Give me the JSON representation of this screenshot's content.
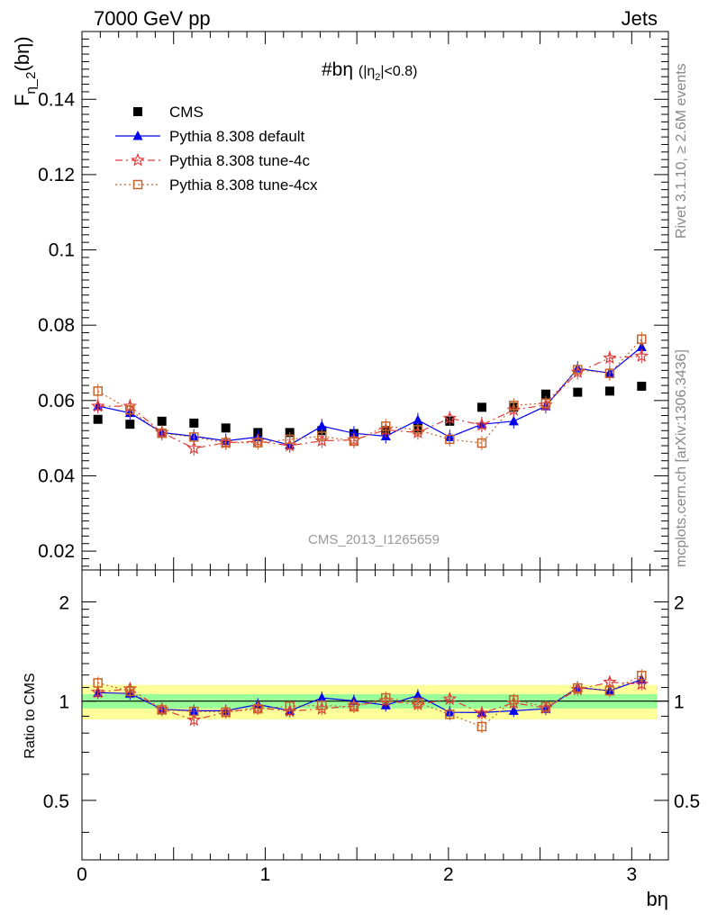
{
  "header": {
    "left": "7000 GeV pp",
    "right": "Jets"
  },
  "side_labels": {
    "rivet": "Rivet 3.1.10, ≥ 2.6M events",
    "mcplots": "mcplots.cern.ch [arXiv:1306.3436]"
  },
  "watermark": "CMS_2013_I1265659",
  "colors": {
    "cms": "#000000",
    "default": "#0000ee",
    "tune4c": "#e03c3c",
    "tune4cx": "#c8642a",
    "band_inner": "#99ff99",
    "band_outer": "#ffff99"
  },
  "chart_data": [
    {
      "type": "scatter",
      "panel": "main",
      "title": "#bη (|η₂|<0.8)",
      "ylabel": "F_η_2(bη)",
      "xlim": [
        0,
        3.2
      ],
      "ylim": [
        0.015,
        0.158
      ],
      "yticks": [
        0.02,
        0.04,
        0.06,
        0.08,
        0.1,
        0.12,
        0.14
      ],
      "ytick_labels": [
        "0.02",
        "0.04",
        "0.06",
        "0.08",
        "0.1",
        "0.12",
        "0.14"
      ],
      "x": [
        0.087,
        0.262,
        0.436,
        0.611,
        0.785,
        0.96,
        1.134,
        1.309,
        1.484,
        1.658,
        1.833,
        2.007,
        2.182,
        2.356,
        2.531,
        2.705,
        2.88,
        3.054
      ],
      "legend": [
        "CMS",
        "Pythia 8.308 default",
        "Pythia 8.308 tune-4c",
        "Pythia 8.308 tune-4cx"
      ],
      "series": [
        {
          "name": "CMS",
          "marker": "square",
          "values": [
            0.055,
            0.0537,
            0.0545,
            0.054,
            0.0527,
            0.0515,
            0.0515,
            0.052,
            0.0512,
            0.052,
            0.0527,
            0.0545,
            0.0582,
            0.0582,
            0.0617,
            0.0622,
            0.0625,
            0.0638
          ]
        },
        {
          "name": "Pythia 8.308 default",
          "marker": "triangle",
          "values": [
            0.0585,
            0.0567,
            0.0515,
            0.0505,
            0.0493,
            0.0503,
            0.0482,
            0.0532,
            0.0513,
            0.0505,
            0.0548,
            0.0503,
            0.0537,
            0.0545,
            0.0585,
            0.0685,
            0.0673,
            0.0742
          ]
        },
        {
          "name": "Pythia 8.308 tune-4c",
          "marker": "star",
          "values": [
            0.0585,
            0.0585,
            0.0515,
            0.0473,
            0.0488,
            0.0492,
            0.048,
            0.0493,
            0.0495,
            0.0522,
            0.0515,
            0.0553,
            0.0535,
            0.0575,
            0.0588,
            0.0675,
            0.0713,
            0.0718
          ]
        },
        {
          "name": "Pythia 8.308 tune-4cx",
          "marker": "open-square",
          "values": [
            0.0625,
            0.0575,
            0.0513,
            0.0503,
            0.0488,
            0.0488,
            0.0497,
            0.0505,
            0.0492,
            0.0532,
            0.0522,
            0.0497,
            0.0487,
            0.0587,
            0.0593,
            0.0682,
            0.0672,
            0.0763
          ]
        }
      ]
    },
    {
      "type": "scatter",
      "panel": "ratio",
      "ylabel": "Ratio to CMS",
      "xlabel": "bη",
      "xlim": [
        0,
        3.2
      ],
      "ylim": [
        0.33,
        2.5
      ],
      "log_y": true,
      "yticks": [
        0.5,
        1,
        2
      ],
      "ytick_labels": [
        "0.5",
        "1",
        "2"
      ],
      "xticks": [
        0,
        1,
        2,
        3
      ],
      "xtick_labels": [
        "0",
        "1",
        "2",
        "3"
      ],
      "band_inner": 0.05,
      "band_outer": 0.12,
      "x": [
        0.087,
        0.262,
        0.436,
        0.611,
        0.785,
        0.96,
        1.134,
        1.309,
        1.484,
        1.658,
        1.833,
        2.007,
        2.182,
        2.356,
        2.531,
        2.705,
        2.88,
        3.054
      ],
      "series": [
        {
          "name": "Pythia 8.308 default",
          "marker": "triangle",
          "values": [
            1.06,
            1.055,
            0.945,
            0.935,
            0.935,
            0.977,
            0.935,
            1.023,
            1.002,
            0.972,
            1.04,
            0.925,
            0.923,
            0.935,
            0.948,
            1.1,
            1.075,
            1.163
          ]
        },
        {
          "name": "Pythia 8.308 tune-4c",
          "marker": "star",
          "values": [
            1.064,
            1.09,
            0.945,
            0.876,
            0.926,
            0.955,
            0.932,
            0.948,
            0.967,
            1.003,
            0.977,
            1.015,
            0.919,
            0.988,
            0.953,
            1.085,
            1.141,
            1.126
          ]
        },
        {
          "name": "Pythia 8.308 tune-4cx",
          "marker": "open-square",
          "values": [
            1.136,
            1.071,
            0.941,
            0.931,
            0.926,
            0.948,
            0.965,
            0.971,
            0.961,
            1.023,
            0.99,
            0.912,
            0.837,
            1.009,
            0.961,
            1.096,
            1.075,
            1.196
          ]
        }
      ]
    }
  ]
}
